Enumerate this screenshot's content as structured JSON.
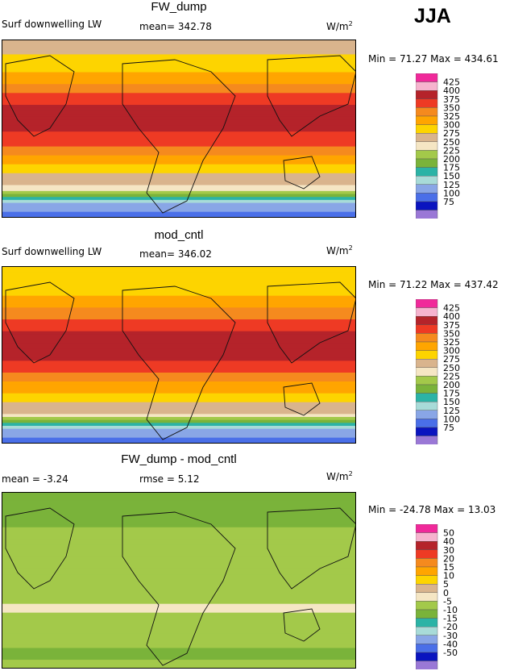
{
  "season": "JJA",
  "units": "W/m",
  "units_sup": "2",
  "panels": [
    {
      "title": "FW_dump",
      "variable": "Surf downwelling LW",
      "stat1_label": "mean=",
      "stat1_value": "342.78",
      "stat2_label": "",
      "stat2_value": "",
      "minmax_text": "Min =  71.27 Max = 434.61"
    },
    {
      "title": "mod_cntl",
      "variable": "Surf downwelling LW",
      "stat1_label": "mean=",
      "stat1_value": "346.02",
      "stat2_label": "",
      "stat2_value": "",
      "minmax_text": "Min =  71.22 Max = 437.42"
    },
    {
      "title": "FW_dump - mod_cntl",
      "variable": "",
      "stat1_label": "mean =",
      "stat1_value": "-3.24",
      "stat2_label": "rmse =",
      "stat2_value": "5.12",
      "minmax_text": "Min = -24.78 Max =  13.03"
    }
  ],
  "chart_data": [
    {
      "type": "heatmap",
      "title": "FW_dump",
      "field": "Surf downwelling LW",
      "mean": 342.78,
      "min": 71.27,
      "max": 434.61,
      "colorbar": {
        "labels": [
          "425",
          "400",
          "375",
          "350",
          "325",
          "300",
          "275",
          "250",
          "225",
          "200",
          "175",
          "150",
          "125",
          "100",
          "75"
        ],
        "colors": [
          "#f0299a",
          "#f6b3ce",
          "#b5232a",
          "#ee3a24",
          "#f58a1e",
          "#ffa500",
          "#fdd400",
          "#d9b48d",
          "#f5e6c4",
          "#a3c94a",
          "#7ab33a",
          "#2bb3a6",
          "#a8dbd8",
          "#89a6e6",
          "#4a6fe8",
          "#0a14bf",
          "#9a78d6"
        ]
      },
      "lat_profile": [
        {
          "lat": 90,
          "value": 290
        },
        {
          "lat": 75,
          "value": 300
        },
        {
          "lat": 60,
          "value": 320
        },
        {
          "lat": 45,
          "value": 350
        },
        {
          "lat": 30,
          "value": 390
        },
        {
          "lat": 15,
          "value": 410
        },
        {
          "lat": 0,
          "value": 405
        },
        {
          "lat": -15,
          "value": 380
        },
        {
          "lat": -30,
          "value": 340
        },
        {
          "lat": -45,
          "value": 300
        },
        {
          "lat": -60,
          "value": 270
        },
        {
          "lat": -75,
          "value": 150
        },
        {
          "lat": -90,
          "value": 100
        }
      ]
    },
    {
      "type": "heatmap",
      "title": "mod_cntl",
      "field": "Surf downwelling LW",
      "mean": 346.02,
      "min": 71.22,
      "max": 437.42,
      "colorbar": {
        "labels": [
          "425",
          "400",
          "375",
          "350",
          "325",
          "300",
          "275",
          "250",
          "225",
          "200",
          "175",
          "150",
          "125",
          "100",
          "75"
        ],
        "colors": [
          "#f0299a",
          "#f6b3ce",
          "#b5232a",
          "#ee3a24",
          "#f58a1e",
          "#ffa500",
          "#fdd400",
          "#d9b48d",
          "#f5e6c4",
          "#a3c94a",
          "#7ab33a",
          "#2bb3a6",
          "#a8dbd8",
          "#89a6e6",
          "#4a6fe8",
          "#0a14bf",
          "#9a78d6"
        ]
      },
      "lat_profile": [
        {
          "lat": 90,
          "value": 300
        },
        {
          "lat": 75,
          "value": 305
        },
        {
          "lat": 60,
          "value": 325
        },
        {
          "lat": 45,
          "value": 355
        },
        {
          "lat": 30,
          "value": 392
        },
        {
          "lat": 15,
          "value": 412
        },
        {
          "lat": 0,
          "value": 408
        },
        {
          "lat": -15,
          "value": 383
        },
        {
          "lat": -30,
          "value": 345
        },
        {
          "lat": -45,
          "value": 305
        },
        {
          "lat": -60,
          "value": 272
        },
        {
          "lat": -75,
          "value": 155
        },
        {
          "lat": -90,
          "value": 100
        }
      ]
    },
    {
      "type": "heatmap",
      "title": "FW_dump - mod_cntl",
      "mean": -3.24,
      "rmse": 5.12,
      "min": -24.78,
      "max": 13.03,
      "colorbar": {
        "labels": [
          "50",
          "40",
          "30",
          "20",
          "15",
          "10",
          "5",
          "0",
          "-5",
          "-10",
          "-15",
          "-20",
          "-30",
          "-40",
          "-50"
        ],
        "colors": [
          "#f0299a",
          "#f6b3ce",
          "#b5232a",
          "#ee3a24",
          "#f58a1e",
          "#ffa500",
          "#fdd400",
          "#d9b48d",
          "#f5e6c4",
          "#a3c94a",
          "#7ab33a",
          "#2bb3a6",
          "#a8dbd8",
          "#89a6e6",
          "#4a6fe8",
          "#0a14bf",
          "#9a78d6"
        ]
      },
      "lat_profile": [
        {
          "lat": 90,
          "value": -5
        },
        {
          "lat": 75,
          "value": -8
        },
        {
          "lat": 60,
          "value": -6
        },
        {
          "lat": 45,
          "value": -4
        },
        {
          "lat": 30,
          "value": -3
        },
        {
          "lat": 15,
          "value": -4
        },
        {
          "lat": 0,
          "value": -2
        },
        {
          "lat": -15,
          "value": -2
        },
        {
          "lat": -30,
          "value": 1
        },
        {
          "lat": -45,
          "value": -4
        },
        {
          "lat": -60,
          "value": -3
        },
        {
          "lat": -75,
          "value": -6
        },
        {
          "lat": -90,
          "value": -4
        }
      ]
    }
  ]
}
